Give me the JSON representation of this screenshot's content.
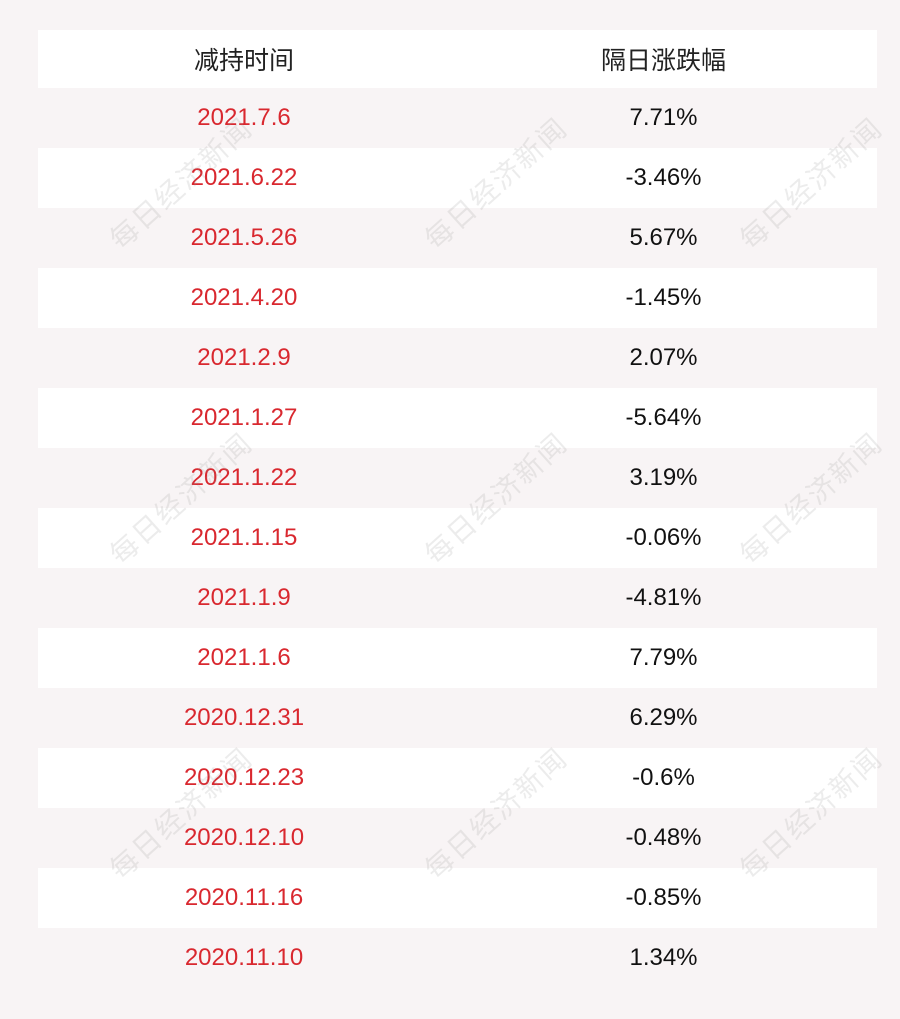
{
  "table": {
    "headers": {
      "date": "减持时间",
      "change": "隔日涨跌幅"
    },
    "rows": [
      {
        "date": "2021.7.6",
        "change": "7.71%"
      },
      {
        "date": "2021.6.22",
        "change": "-3.46%"
      },
      {
        "date": "2021.5.26",
        "change": "5.67%"
      },
      {
        "date": "2021.4.20",
        "change": "-1.45%"
      },
      {
        "date": "2021.2.9",
        "change": "2.07%"
      },
      {
        "date": "2021.1.27",
        "change": "-5.64%"
      },
      {
        "date": "2021.1.22",
        "change": "3.19%"
      },
      {
        "date": "2021.1.15",
        "change": "-0.06%"
      },
      {
        "date": "2021.1.9",
        "change": "-4.81%"
      },
      {
        "date": "2021.1.6",
        "change": "7.79%"
      },
      {
        "date": "2020.12.31",
        "change": "6.29%"
      },
      {
        "date": "2020.12.23",
        "change": "-0.6%"
      },
      {
        "date": "2020.12.10",
        "change": "-0.48%"
      },
      {
        "date": "2020.11.16",
        "change": "-0.85%"
      },
      {
        "date": "2020.11.10",
        "change": "1.34%"
      }
    ]
  },
  "watermark": {
    "text": "每日经济新闻"
  },
  "colors": {
    "date_text": "#d9282f",
    "change_text": "#111111",
    "header_text": "#222222",
    "page_background": "#f8f4f5",
    "row_highlight": "#ffffff"
  }
}
